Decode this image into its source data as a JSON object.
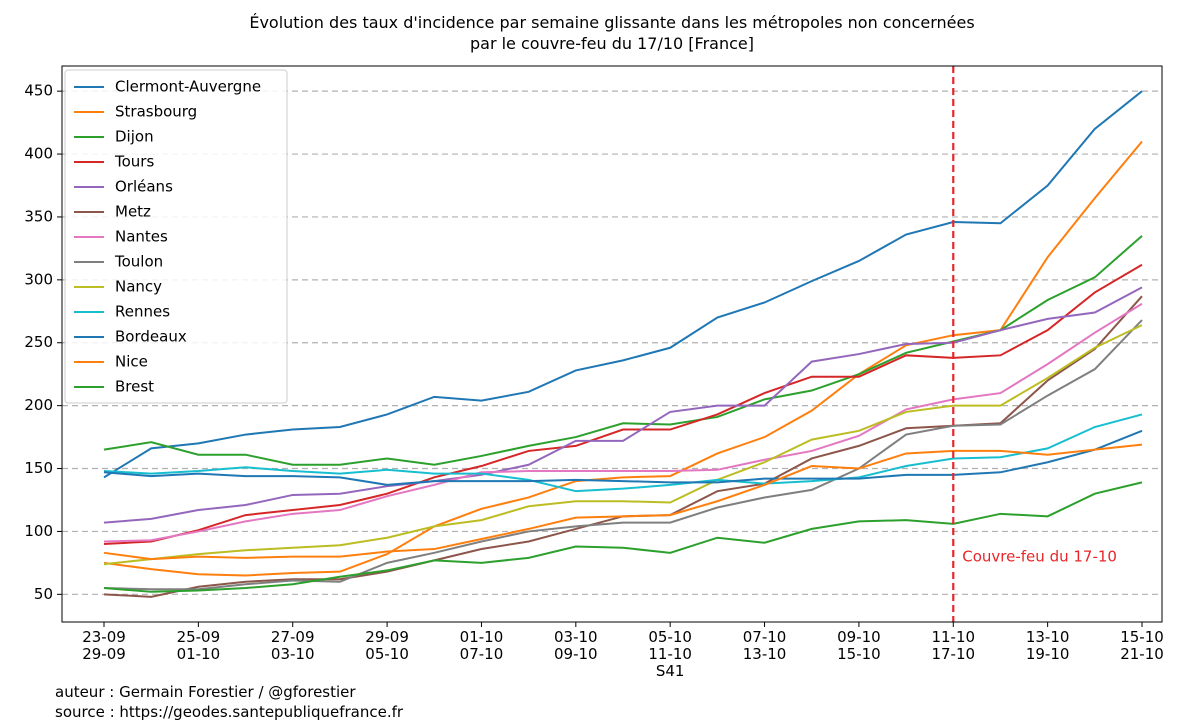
{
  "chart_data": {
    "type": "line",
    "title": "Évolution des taux d'incidence par semaine glissante dans les métropoles non concernées\npar le couvre-feu du 17/10 [France]",
    "categories": [
      "23-09\n29-09",
      null,
      "25-09\n01-10",
      null,
      "27-09\n03-10",
      null,
      "29-09\n05-10",
      null,
      "01-10\n07-10",
      null,
      "03-10\n09-10",
      null,
      "05-10\n11-10\nS41",
      null,
      "07-10\n13-10",
      null,
      "09-10\n15-10",
      null,
      "11-10\n17-10",
      null,
      "13-10\n19-10",
      null,
      "15-10\n21-10"
    ],
    "series": [
      {
        "name": "Clermont-Auvergne",
        "color": "#1f77b4",
        "values": [
          143,
          166,
          170,
          177,
          181,
          183,
          193,
          207,
          204,
          211,
          228,
          236,
          246,
          270,
          282,
          299,
          315,
          336,
          346,
          345,
          375,
          420,
          450
        ]
      },
      {
        "name": "Strasbourg",
        "color": "#ff7f0e",
        "values": [
          75,
          70,
          66,
          65,
          67,
          68,
          82,
          104,
          118,
          127,
          140,
          143,
          144,
          162,
          175,
          196,
          225,
          248,
          256,
          260,
          318,
          365,
          410
        ]
      },
      {
        "name": "Dijon",
        "color": "#2ca02c",
        "values": [
          165,
          171,
          161,
          161,
          153,
          153,
          158,
          153,
          160,
          168,
          175,
          186,
          185,
          191,
          205,
          212,
          225,
          242,
          251,
          260,
          284,
          302,
          335
        ]
      },
      {
        "name": "Tours",
        "color": "#d62728",
        "values": [
          90,
          92,
          101,
          113,
          117,
          121,
          130,
          143,
          152,
          164,
          168,
          181,
          181,
          193,
          210,
          223,
          223,
          240,
          238,
          240,
          260,
          290,
          312
        ]
      },
      {
        "name": "Orléans",
        "color": "#9467bd",
        "values": [
          107,
          110,
          117,
          121,
          129,
          130,
          136,
          140,
          145,
          153,
          172,
          172,
          195,
          200,
          200,
          235,
          241,
          249,
          250,
          260,
          269,
          274,
          294
        ]
      },
      {
        "name": "Metz",
        "color": "#8c564b",
        "values": [
          50,
          48,
          56,
          60,
          62,
          62,
          68,
          77,
          86,
          92,
          102,
          112,
          113,
          132,
          138,
          158,
          168,
          182,
          184,
          186,
          220,
          245,
          287
        ]
      },
      {
        "name": "Nantes",
        "color": "#e377c2",
        "values": [
          92,
          93,
          100,
          108,
          114,
          117,
          128,
          137,
          147,
          148,
          148,
          148,
          148,
          149,
          157,
          164,
          176,
          197,
          205,
          210,
          233,
          258,
          281
        ]
      },
      {
        "name": "Toulon",
        "color": "#7f7f7f",
        "values": [
          55,
          54,
          54,
          58,
          61,
          60,
          75,
          83,
          92,
          100,
          104,
          107,
          107,
          119,
          127,
          133,
          150,
          177,
          184,
          185,
          208,
          229,
          268
        ]
      },
      {
        "name": "Nancy",
        "color": "#bcbd22",
        "values": [
          74,
          78,
          82,
          85,
          87,
          89,
          95,
          104,
          109,
          120,
          124,
          124,
          123,
          141,
          155,
          173,
          180,
          195,
          200,
          200,
          222,
          246,
          264
        ]
      },
      {
        "name": "Rennes",
        "color": "#17becf",
        "values": [
          148,
          146,
          148,
          151,
          148,
          146,
          149,
          146,
          146,
          141,
          132,
          134,
          137,
          141,
          138,
          140,
          143,
          152,
          158,
          159,
          166,
          183,
          193
        ]
      },
      {
        "name": "Bordeaux",
        "color": "#1f77b4",
        "values": [
          147,
          144,
          146,
          144,
          144,
          143,
          137,
          140,
          140,
          140,
          141,
          140,
          139,
          139,
          142,
          142,
          142,
          145,
          145,
          147,
          155,
          165,
          180
        ]
      },
      {
        "name": "Nice",
        "color": "#ff7f0e",
        "values": [
          83,
          78,
          80,
          79,
          80,
          80,
          84,
          86,
          94,
          102,
          111,
          112,
          113,
          124,
          137,
          152,
          150,
          162,
          164,
          164,
          161,
          165,
          169
        ]
      },
      {
        "name": "Brest",
        "color": "#2ca02c",
        "values": [
          55,
          52,
          53,
          55,
          58,
          64,
          69,
          77,
          75,
          79,
          88,
          87,
          83,
          95,
          91,
          102,
          108,
          109,
          106,
          114,
          112,
          130,
          139
        ]
      }
    ],
    "ylim": [
      28,
      470
    ],
    "yticks": [
      50,
      100,
      150,
      200,
      250,
      300,
      350,
      400,
      450
    ],
    "grid": "y",
    "legend": "upper left",
    "vline": {
      "category": 18,
      "label": "Couvre-feu du 17-10",
      "color": "#e8262a"
    },
    "footer": [
      "auteur : Germain Forestier / @gforestier",
      "source : https://geodes.santepubliquefrance.fr"
    ]
  }
}
